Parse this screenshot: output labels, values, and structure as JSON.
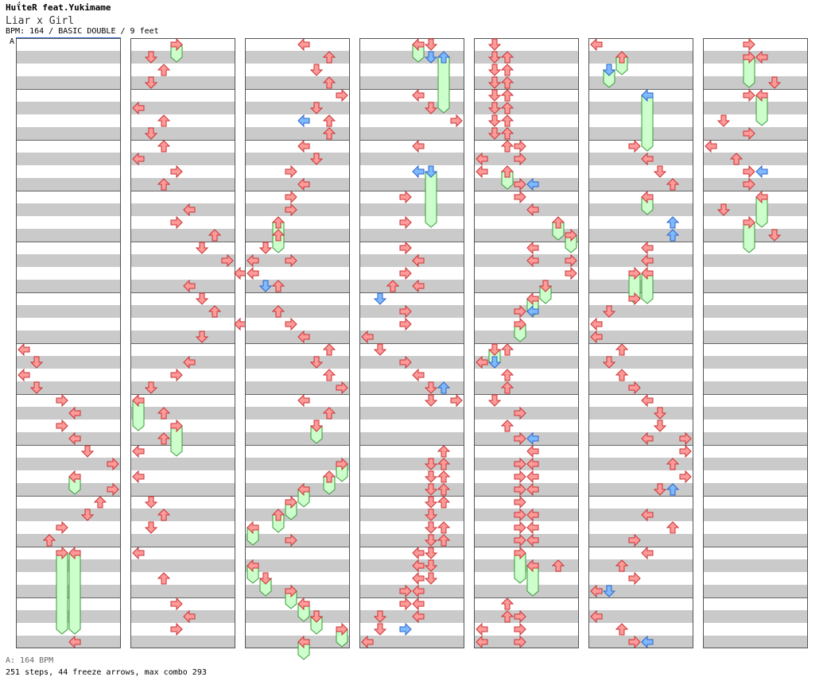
{
  "artist": "HuΐteR feat.Yukimame",
  "title": "Liar x Girl",
  "info": "BPM: 164 / BASIC DOUBLE / 9 feet",
  "section_label": "A",
  "footer": {
    "bpm": "A: 164 BPM",
    "stats": "251 steps, 44 freeze arrows, max combo 293"
  },
  "colors": {
    "tap": "#ff9a9a",
    "tap_stroke": "#c83232",
    "tap_alt": "#7fb9ff",
    "tap_alt_stroke": "#2a64c8",
    "freeze": "#ccffcc",
    "freeze_stroke": "#3a9a3a",
    "stripe": "#cacaca"
  },
  "lanes": [
    "left",
    "down",
    "up",
    "right",
    "left",
    "down",
    "up",
    "right"
  ],
  "chart_data": {
    "type": "table",
    "columns": 7,
    "rows_per_column": 48,
    "notes": [
      [
        {
          "r": 24,
          "l": 0
        },
        {
          "r": 25,
          "l": 1
        },
        {
          "r": 26,
          "l": 0
        },
        {
          "r": 27,
          "l": 1
        },
        {
          "r": 28,
          "l": 3
        },
        {
          "r": 29,
          "l": 4
        },
        {
          "r": 30,
          "l": 3
        },
        {
          "r": 31,
          "l": 4
        },
        {
          "r": 32,
          "l": 5
        },
        {
          "r": 33,
          "l": 7
        },
        {
          "r": 34,
          "l": 4,
          "f": 1
        },
        {
          "r": 35,
          "l": 7
        },
        {
          "r": 36,
          "l": 6
        },
        {
          "r": 37,
          "l": 5
        },
        {
          "r": 38,
          "l": 3
        },
        {
          "r": 39,
          "l": 2
        },
        {
          "r": 40,
          "l": 3,
          "f": 6
        },
        {
          "r": 40,
          "l": 4,
          "f": 6
        },
        {
          "r": 47,
          "l": 4
        }
      ],
      [
        {
          "r": 0,
          "l": 3,
          "f": 1
        },
        {
          "r": 1,
          "l": 1
        },
        {
          "r": 2,
          "l": 2
        },
        {
          "r": 3,
          "l": 1
        },
        {
          "r": 5,
          "l": 0
        },
        {
          "r": 6,
          "l": 2
        },
        {
          "r": 7,
          "l": 1
        },
        {
          "r": 8,
          "l": 2
        },
        {
          "r": 9,
          "l": 0
        },
        {
          "r": 10,
          "l": 3
        },
        {
          "r": 11,
          "l": 2
        },
        {
          "r": 13,
          "l": 4
        },
        {
          "r": 14,
          "l": 3
        },
        {
          "r": 15,
          "l": 6
        },
        {
          "r": 16,
          "l": 5
        },
        {
          "r": 17,
          "l": 7
        },
        {
          "r": 18,
          "l": 8
        },
        {
          "r": 19,
          "l": 4
        },
        {
          "r": 20,
          "l": 5
        },
        {
          "r": 21,
          "l": 6
        },
        {
          "r": 22,
          "l": 8
        },
        {
          "r": 23,
          "l": 5
        },
        {
          "r": 25,
          "l": 4
        },
        {
          "r": 26,
          "l": 3
        },
        {
          "r": 27,
          "l": 1
        },
        {
          "r": 28,
          "l": 0,
          "f": 2
        },
        {
          "r": 29,
          "l": 2
        },
        {
          "r": 30,
          "l": 3,
          "f": 2
        },
        {
          "r": 31,
          "l": 2
        },
        {
          "r": 32,
          "l": 0
        },
        {
          "r": 34,
          "l": 0
        },
        {
          "r": 36,
          "l": 1
        },
        {
          "r": 37,
          "l": 2
        },
        {
          "r": 38,
          "l": 1
        },
        {
          "r": 40,
          "l": 0
        },
        {
          "r": 42,
          "l": 2
        },
        {
          "r": 44,
          "l": 3
        },
        {
          "r": 45,
          "l": 4
        },
        {
          "r": 46,
          "l": 3
        }
      ],
      [
        {
          "r": 0,
          "l": 4
        },
        {
          "r": 1,
          "l": 6
        },
        {
          "r": 2,
          "l": 5
        },
        {
          "r": 3,
          "l": 6
        },
        {
          "r": 4,
          "l": 7
        },
        {
          "r": 5,
          "l": 5
        },
        {
          "r": 6,
          "l": 6
        },
        {
          "r": 6,
          "l": 4,
          "b": 1
        },
        {
          "r": 7,
          "l": 6
        },
        {
          "r": 8,
          "l": 4
        },
        {
          "r": 9,
          "l": 5
        },
        {
          "r": 10,
          "l": 3
        },
        {
          "r": 11,
          "l": 4
        },
        {
          "r": 12,
          "l": 3
        },
        {
          "r": 13,
          "l": 3
        },
        {
          "r": 14,
          "l": 2,
          "f": 1
        },
        {
          "r": 15,
          "l": 2,
          "f": 1
        },
        {
          "r": 16,
          "l": 1
        },
        {
          "r": 17,
          "l": 0
        },
        {
          "r": 18,
          "l": 0
        },
        {
          "r": 17,
          "l": 3
        },
        {
          "r": 19,
          "l": 1,
          "b": 1
        },
        {
          "r": 19,
          "l": 2
        },
        {
          "r": 21,
          "l": 2
        },
        {
          "r": 22,
          "l": 3
        },
        {
          "r": 23,
          "l": 4
        },
        {
          "r": 24,
          "l": 6
        },
        {
          "r": 25,
          "l": 5
        },
        {
          "r": 26,
          "l": 6
        },
        {
          "r": 27,
          "l": 7
        },
        {
          "r": 28,
          "l": 4
        },
        {
          "r": 29,
          "l": 6
        },
        {
          "r": 30,
          "l": 5,
          "f": 1
        },
        {
          "r": 33,
          "l": 7,
          "f": 1
        },
        {
          "r": 34,
          "l": 6,
          "f": 1
        },
        {
          "r": 35,
          "l": 4,
          "f": 1
        },
        {
          "r": 36,
          "l": 3,
          "f": 1
        },
        {
          "r": 37,
          "l": 2,
          "f": 1
        },
        {
          "r": 38,
          "l": 0,
          "f": 1
        },
        {
          "r": 39,
          "l": 3
        },
        {
          "r": 41,
          "l": 0,
          "f": 1
        },
        {
          "r": 42,
          "l": 1,
          "f": 1
        },
        {
          "r": 43,
          "l": 3,
          "f": 1
        },
        {
          "r": 44,
          "l": 4,
          "f": 1
        },
        {
          "r": 45,
          "l": 5,
          "f": 1
        },
        {
          "r": 46,
          "l": 7,
          "f": 1
        },
        {
          "r": 47,
          "l": 4,
          "f": 1
        }
      ],
      [
        {
          "r": 0,
          "l": 4,
          "f": 1
        },
        {
          "r": 0,
          "l": 5
        },
        {
          "r": 1,
          "l": 5,
          "b": 1
        },
        {
          "r": 1,
          "l": 6,
          "b": 1,
          "f": 4
        },
        {
          "r": 4,
          "l": 4
        },
        {
          "r": 5,
          "l": 5
        },
        {
          "r": 6,
          "l": 7
        },
        {
          "r": 8,
          "l": 4
        },
        {
          "r": 10,
          "l": 4,
          "b": 1
        },
        {
          "r": 10,
          "l": 5,
          "b": 1,
          "f": 4
        },
        {
          "r": 12,
          "l": 3
        },
        {
          "r": 14,
          "l": 3
        },
        {
          "r": 16,
          "l": 3
        },
        {
          "r": 17,
          "l": 4
        },
        {
          "r": 16,
          "l": 3
        },
        {
          "r": 17,
          "l": 4
        },
        {
          "r": 18,
          "l": 3
        },
        {
          "r": 19,
          "l": 4
        },
        {
          "r": 20,
          "l": 1,
          "b": 1
        },
        {
          "r": 19,
          "l": 2
        },
        {
          "r": 21,
          "l": 3
        },
        {
          "r": 22,
          "l": 3
        },
        {
          "r": 23,
          "l": 0
        },
        {
          "r": 24,
          "l": 1
        },
        {
          "r": 25,
          "l": 3
        },
        {
          "r": 26,
          "l": 4
        },
        {
          "r": 27,
          "l": 5
        },
        {
          "r": 28,
          "l": 5
        },
        {
          "r": 27,
          "l": 6,
          "b": 1
        },
        {
          "r": 28,
          "l": 7
        },
        {
          "r": 32,
          "l": 6
        },
        {
          "r": 33,
          "l": 5
        },
        {
          "r": 33,
          "l": 6
        },
        {
          "r": 34,
          "l": 5
        },
        {
          "r": 34,
          "l": 6
        },
        {
          "r": 35,
          "l": 5
        },
        {
          "r": 35,
          "l": 6
        },
        {
          "r": 36,
          "l": 5
        },
        {
          "r": 36,
          "l": 6
        },
        {
          "r": 37,
          "l": 5
        },
        {
          "r": 38,
          "l": 5
        },
        {
          "r": 38,
          "l": 6
        },
        {
          "r": 39,
          "l": 5
        },
        {
          "r": 39,
          "l": 6
        },
        {
          "r": 40,
          "l": 4
        },
        {
          "r": 40,
          "l": 5
        },
        {
          "r": 41,
          "l": 4
        },
        {
          "r": 41,
          "l": 5
        },
        {
          "r": 42,
          "l": 4
        },
        {
          "r": 42,
          "l": 5
        },
        {
          "r": 43,
          "l": 3
        },
        {
          "r": 43,
          "l": 4
        },
        {
          "r": 44,
          "l": 3
        },
        {
          "r": 44,
          "l": 4
        },
        {
          "r": 45,
          "l": 1
        },
        {
          "r": 45,
          "l": 4
        },
        {
          "r": 46,
          "l": 1
        },
        {
          "r": 46,
          "l": 3,
          "b": 1
        },
        {
          "r": 47,
          "l": 0
        }
      ],
      [
        {
          "r": 0,
          "l": 1
        },
        {
          "r": 1,
          "l": 1
        },
        {
          "r": 1,
          "l": 2
        },
        {
          "r": 2,
          "l": 1
        },
        {
          "r": 2,
          "l": 2
        },
        {
          "r": 3,
          "l": 1
        },
        {
          "r": 3,
          "l": 2
        },
        {
          "r": 4,
          "l": 1
        },
        {
          "r": 4,
          "l": 2
        },
        {
          "r": 5,
          "l": 1
        },
        {
          "r": 5,
          "l": 2
        },
        {
          "r": 6,
          "l": 1
        },
        {
          "r": 6,
          "l": 2
        },
        {
          "r": 7,
          "l": 1
        },
        {
          "r": 7,
          "l": 2
        },
        {
          "r": 8,
          "l": 2
        },
        {
          "r": 8,
          "l": 3
        },
        {
          "r": 9,
          "l": 0
        },
        {
          "r": 9,
          "l": 3
        },
        {
          "r": 10,
          "l": 0
        },
        {
          "r": 10,
          "l": 2,
          "f": 1
        },
        {
          "r": 11,
          "l": 3
        },
        {
          "r": 11,
          "l": 4,
          "b": 1
        },
        {
          "r": 12,
          "l": 3
        },
        {
          "r": 13,
          "l": 4
        },
        {
          "r": 14,
          "l": 6,
          "f": 1
        },
        {
          "r": 15,
          "l": 7,
          "f": 1
        },
        {
          "r": 16,
          "l": 4
        },
        {
          "r": 17,
          "l": 4
        },
        {
          "r": 17,
          "l": 7
        },
        {
          "r": 18,
          "l": 7
        },
        {
          "r": 19,
          "l": 5,
          "f": 1
        },
        {
          "r": 20,
          "l": 4,
          "f": 1
        },
        {
          "r": 21,
          "l": 3
        },
        {
          "r": 21,
          "l": 4,
          "b": 1
        },
        {
          "r": 22,
          "l": 3,
          "f": 1
        },
        {
          "r": 24,
          "l": 1,
          "f": 1
        },
        {
          "r": 24,
          "l": 2
        },
        {
          "r": 25,
          "l": 0
        },
        {
          "r": 25,
          "l": 1,
          "b": 1
        },
        {
          "r": 26,
          "l": 2
        },
        {
          "r": 27,
          "l": 2
        },
        {
          "r": 28,
          "l": 1
        },
        {
          "r": 29,
          "l": 3
        },
        {
          "r": 30,
          "l": 2
        },
        {
          "r": 31,
          "l": 3
        },
        {
          "r": 31,
          "l": 4,
          "b": 1
        },
        {
          "r": 32,
          "l": 4
        },
        {
          "r": 33,
          "l": 3
        },
        {
          "r": 33,
          "l": 4
        },
        {
          "r": 34,
          "l": 3
        },
        {
          "r": 34,
          "l": 4
        },
        {
          "r": 35,
          "l": 3
        },
        {
          "r": 35,
          "l": 4
        },
        {
          "r": 36,
          "l": 3
        },
        {
          "r": 37,
          "l": 3
        },
        {
          "r": 37,
          "l": 4
        },
        {
          "r": 38,
          "l": 3
        },
        {
          "r": 38,
          "l": 4
        },
        {
          "r": 39,
          "l": 3
        },
        {
          "r": 39,
          "l": 4
        },
        {
          "r": 40,
          "l": 3,
          "f": 2
        },
        {
          "r": 41,
          "l": 6
        },
        {
          "r": 41,
          "l": 4,
          "f": 2
        },
        {
          "r": 44,
          "l": 2
        },
        {
          "r": 45,
          "l": 2
        },
        {
          "r": 45,
          "l": 3
        },
        {
          "r": 46,
          "l": 0
        },
        {
          "r": 46,
          "l": 3
        },
        {
          "r": 47,
          "l": 0
        },
        {
          "r": 47,
          "l": 3
        }
      ],
      [
        {
          "r": 0,
          "l": 0
        },
        {
          "r": 1,
          "l": 2,
          "f": 1
        },
        {
          "r": 2,
          "l": 1,
          "b": 1,
          "f": 1
        },
        {
          "r": 4,
          "l": 4,
          "b": 1,
          "f": 4
        },
        {
          "r": 8,
          "l": 3
        },
        {
          "r": 9,
          "l": 4
        },
        {
          "r": 10,
          "l": 5
        },
        {
          "r": 11,
          "l": 6
        },
        {
          "r": 12,
          "l": 4,
          "f": 1
        },
        {
          "r": 14,
          "l": 6,
          "b": 1
        },
        {
          "r": 15,
          "l": 6,
          "b": 1
        },
        {
          "r": 16,
          "l": 4
        },
        {
          "r": 17,
          "l": 4
        },
        {
          "r": 18,
          "l": 4,
          "f": 2
        },
        {
          "r": 18,
          "l": 3,
          "f": 2
        },
        {
          "r": 20,
          "l": 3
        },
        {
          "r": 21,
          "l": 1
        },
        {
          "r": 22,
          "l": 0
        },
        {
          "r": 23,
          "l": 0
        },
        {
          "r": 24,
          "l": 2
        },
        {
          "r": 25,
          "l": 1
        },
        {
          "r": 26,
          "l": 2
        },
        {
          "r": 27,
          "l": 3
        },
        {
          "r": 28,
          "l": 4
        },
        {
          "r": 29,
          "l": 5
        },
        {
          "r": 30,
          "l": 5
        },
        {
          "r": 31,
          "l": 4
        },
        {
          "r": 31,
          "l": 7
        },
        {
          "r": 32,
          "l": 7
        },
        {
          "r": 33,
          "l": 6
        },
        {
          "r": 34,
          "l": 7
        },
        {
          "r": 35,
          "l": 5
        },
        {
          "r": 35,
          "l": 6,
          "b": 1
        },
        {
          "r": 37,
          "l": 4
        },
        {
          "r": 38,
          "l": 6
        },
        {
          "r": 39,
          "l": 3
        },
        {
          "r": 40,
          "l": 4
        },
        {
          "r": 41,
          "l": 2
        },
        {
          "r": 42,
          "l": 3
        },
        {
          "r": 43,
          "l": 0
        },
        {
          "r": 43,
          "l": 1,
          "b": 1
        },
        {
          "r": 45,
          "l": 0
        },
        {
          "r": 46,
          "l": 2
        },
        {
          "r": 47,
          "l": 3
        },
        {
          "r": 47,
          "l": 4,
          "b": 1
        }
      ],
      [
        {
          "r": 0,
          "l": 3
        },
        {
          "r": 1,
          "l": 3,
          "f": 2
        },
        {
          "r": 1,
          "l": 4
        },
        {
          "r": 3,
          "l": 5
        },
        {
          "r": 4,
          "l": 3
        },
        {
          "r": 4,
          "l": 4,
          "f": 2
        },
        {
          "r": 6,
          "l": 1
        },
        {
          "r": 7,
          "l": 3
        },
        {
          "r": 8,
          "l": 0
        },
        {
          "r": 9,
          "l": 2
        },
        {
          "r": 10,
          "l": 3
        },
        {
          "r": 11,
          "l": 3
        },
        {
          "r": 10,
          "l": 4,
          "b": 1
        },
        {
          "r": 12,
          "l": 4,
          "f": 2
        },
        {
          "r": 13,
          "l": 1
        },
        {
          "r": 14,
          "l": 3,
          "f": 2
        },
        {
          "r": 15,
          "l": 5
        }
      ]
    ]
  }
}
